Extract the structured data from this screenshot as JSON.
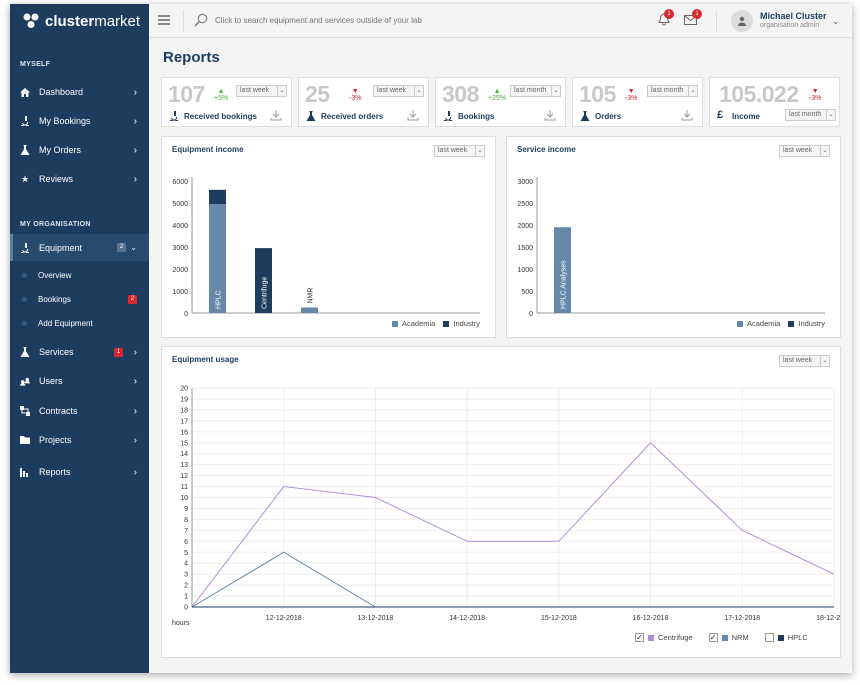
{
  "brand": {
    "name_bold": "cluster",
    "name_light": "market"
  },
  "sidebar": {
    "sections": [
      "MYSELF",
      "MY ORGANISATION"
    ],
    "myself": [
      {
        "label": "Dashboard",
        "icon": "home-icon"
      },
      {
        "label": "My Bookings",
        "icon": "microscope-icon"
      },
      {
        "label": "My Orders",
        "icon": "flask-icon"
      },
      {
        "label": "Reviews",
        "icon": "star-icon"
      }
    ],
    "equipment": {
      "label": "Equipment",
      "badge": "2"
    },
    "equipment_sub": [
      {
        "label": "Overview"
      },
      {
        "label": "Bookings",
        "badge": "2"
      },
      {
        "label": "Add Equipment"
      }
    ],
    "org": [
      {
        "label": "Services",
        "icon": "flask-icon",
        "badge": "1"
      },
      {
        "label": "Users",
        "icon": "users-icon"
      },
      {
        "label": "Contracts",
        "icon": "contracts-icon"
      },
      {
        "label": "Projects",
        "icon": "folder-icon"
      },
      {
        "label": "Reports",
        "icon": "bar-chart-icon"
      }
    ]
  },
  "topbar": {
    "search_placeholder": "Click to search equipment and services outside of your lab",
    "notifications": "1",
    "messages": "1",
    "user_name": "Michael Cluster",
    "user_role": "organisation admin"
  },
  "page_title": "Reports",
  "kpis": [
    {
      "value": "107",
      "change": "+5%",
      "dir": "up",
      "period": "last week",
      "label": "Received bookings",
      "icon": "microscope-icon"
    },
    {
      "value": "25",
      "change": "-3%",
      "dir": "down",
      "period": "last week",
      "label": "Received orders",
      "icon": "flask-icon"
    },
    {
      "value": "308",
      "change": "+25%",
      "dir": "up",
      "period": "last month",
      "label": "Bookings",
      "icon": "microscope-icon"
    },
    {
      "value": "105",
      "change": "-3%",
      "dir": "down",
      "period": "last month",
      "label": "Orders",
      "icon": "flask-icon"
    },
    {
      "value": "105.022",
      "change": "-3%",
      "dir": "down",
      "period": "last month",
      "label": "Income",
      "icon": "pound-icon",
      "icon_char": "£"
    }
  ],
  "colors": {
    "academia": "#6688aa",
    "industry": "#1e3d5e",
    "centrifuge": "#b38ed8",
    "nrm": "#6688aa",
    "hplc": "#1e3d5e",
    "sidebar": "#1e3d5e"
  },
  "chart_data": [
    {
      "type": "bar",
      "title": "Equipment income",
      "period": "last week",
      "categories": [
        "HPLC",
        "Centrifuge",
        "NMR"
      ],
      "series": [
        {
          "name": "Academia",
          "values": [
            4950,
            0,
            250
          ]
        },
        {
          "name": "Industry",
          "values": [
            650,
            2950,
            0
          ]
        }
      ],
      "ylim": [
        0,
        6000
      ],
      "yticks": [
        "6000",
        "5000",
        "4000",
        "3000",
        "2000",
        "1000",
        "0"
      ]
    },
    {
      "type": "bar",
      "title": "Service income",
      "period": "last week",
      "categories": [
        "HPLC Analyses"
      ],
      "series": [
        {
          "name": "Academia",
          "values": [
            1950
          ]
        },
        {
          "name": "Industry",
          "values": [
            0
          ]
        }
      ],
      "ylim": [
        0,
        3000
      ],
      "yticks": [
        "3000",
        "2500",
        "2000",
        "1500",
        "1000",
        "500",
        "0"
      ]
    },
    {
      "type": "line",
      "title": "Equipment usage",
      "period": "last week",
      "ylabel": "hours",
      "x": [
        "",
        "12-12-2018",
        "13-12-2018",
        "14-12-2018",
        "15-12-2018",
        "16-12-2018",
        "17-12-2018",
        "18-12-2018"
      ],
      "series": [
        {
          "name": "Centrifuge",
          "checked": true,
          "values": [
            0,
            11,
            10,
            6,
            6,
            15,
            7,
            3
          ]
        },
        {
          "name": "NRM",
          "checked": true,
          "values": [
            0,
            5,
            0,
            0,
            0,
            0,
            0,
            0
          ]
        },
        {
          "name": "HPLC",
          "checked": false,
          "values": [
            0,
            0,
            0,
            0,
            0,
            0,
            0,
            0
          ]
        }
      ],
      "ylim": [
        0,
        20
      ],
      "yticks": [
        "20",
        "19",
        "18",
        "17",
        "16",
        "15",
        "14",
        "13",
        "12",
        "11",
        "10",
        "9",
        "8",
        "7",
        "6",
        "5",
        "4",
        "3",
        "2",
        "1",
        "0"
      ]
    }
  ]
}
